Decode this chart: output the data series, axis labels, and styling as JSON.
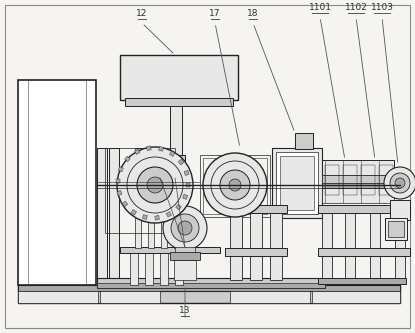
{
  "bg_color": "#f5f4f0",
  "lc": "#444444",
  "bc": "#222222",
  "white": "#ffffff",
  "lgray": "#e8e8e8",
  "mgray": "#cccccc",
  "dgray": "#aaaaaa",
  "label_fs": 6.5,
  "label_color": "#333333",
  "underline_color": "#555555"
}
